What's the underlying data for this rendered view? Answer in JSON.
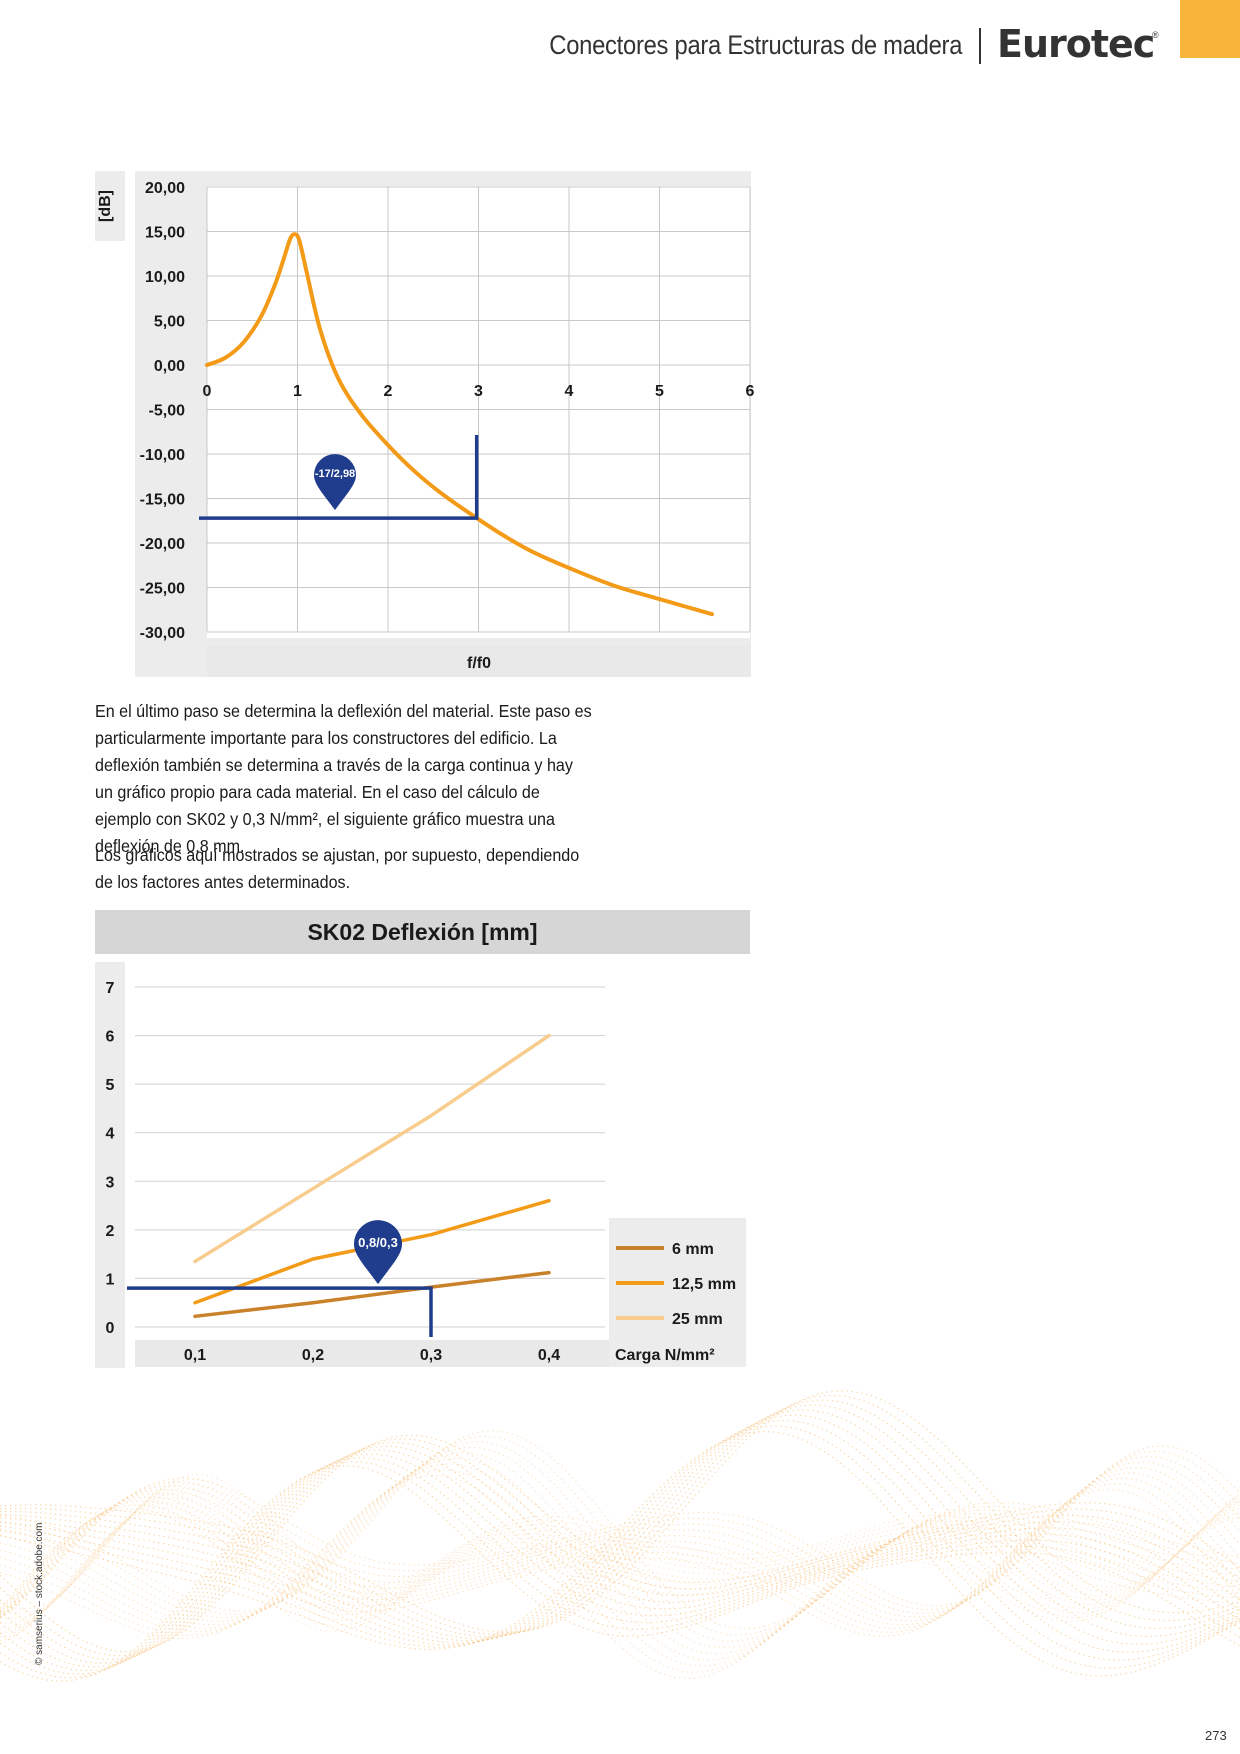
{
  "header": {
    "title": "Conectores para Estructuras de madera",
    "logo_text": "Eurotec",
    "logo_mark": "®"
  },
  "paragraphs": [
    "En el último paso se determina la deflexión del material. Este paso es particularmente importante para los constructores del edificio. La deflexión también se determina a través de la carga continua y hay un gráfico propio para cada material. En el caso del cálculo de ejemplo con SK02 y 0,3 N/mm², el siguiente gráfico muestra una deflexión de 0,8 mm.",
    "Los gráficos aquí mostrados se ajustan, por supuesto, dependiendo de los factores antes determinados."
  ],
  "credit": "© samserius – stock.adobe.com",
  "page_number": "273",
  "colors": {
    "accent": "#f7b53c",
    "curve_orange": "#f39a17",
    "marker_blue": "#1f3d8c",
    "line_dark_orange": "#c9812a",
    "line_light_orange": "#f8cc8c",
    "panel_gray": "#ececec",
    "title_gray": "#d6d6d6"
  },
  "chart_data": [
    {
      "type": "line",
      "title": "",
      "ylabel": "[dB]",
      "xlabel": "f/f0",
      "xlim": [
        0,
        6
      ],
      "ylim": [
        -30,
        20
      ],
      "x_ticks": [
        "0",
        "1",
        "2",
        "3",
        "4",
        "5",
        "6"
      ],
      "y_ticks": [
        "20,00",
        "15,00",
        "10,00",
        "5,00",
        "0,00",
        "-5,00",
        "-10,00",
        "-15,00",
        "-20,00",
        "-25,00",
        "-30,00"
      ],
      "series": [
        {
          "x": [
            0,
            0.2,
            0.4,
            0.6,
            0.75,
            0.85,
            0.92,
            0.97,
            1.02,
            1.1,
            1.25,
            1.45,
            1.7,
            2.0,
            2.3,
            2.6,
            2.98,
            3.3,
            3.6,
            4.0,
            4.5,
            5.0,
            5.58
          ],
          "y": [
            0,
            0.8,
            2.5,
            5.5,
            9.0,
            12.0,
            14.2,
            14.7,
            14.0,
            10.5,
            4.0,
            -1.5,
            -5.5,
            -9.0,
            -12.0,
            -14.5,
            -17.2,
            -19.3,
            -21.0,
            -22.8,
            -24.8,
            -26.3,
            -28.0
          ]
        }
      ],
      "annotation": {
        "label": "-17/2,98",
        "x": 2.98,
        "y": -17.2
      }
    },
    {
      "type": "line",
      "title": "SK02 Deflexión [mm]",
      "xlabel": "Carga N/mm²",
      "ylabel": "",
      "ylim": [
        0,
        7
      ],
      "x": [
        0.1,
        0.2,
        0.3,
        0.4
      ],
      "x_ticks": [
        "0,1",
        "0,2",
        "0,3",
        "0,4"
      ],
      "y_ticks": [
        "7",
        "6",
        "5",
        "4",
        "3",
        "2",
        "1",
        "0"
      ],
      "legend_position": "right",
      "series": [
        {
          "name": "6 mm",
          "values": [
            0.22,
            0.5,
            0.82,
            1.12
          ]
        },
        {
          "name": "12,5 mm",
          "values": [
            0.5,
            1.4,
            1.9,
            2.6
          ]
        },
        {
          "name": "25 mm",
          "values": [
            1.35,
            2.85,
            4.35,
            6.0
          ]
        }
      ],
      "annotation": {
        "label": "0,8/0,3",
        "x": 0.3,
        "y": 0.82
      }
    }
  ]
}
